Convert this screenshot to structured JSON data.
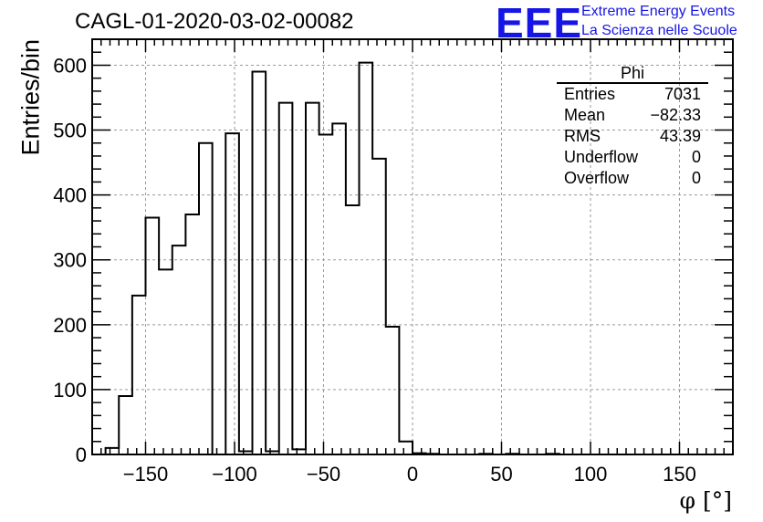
{
  "title": "CAGL-01-2020-03-02-00082",
  "logo": {
    "mark": "EEE",
    "line1": "Extreme Energy Events",
    "line2": "La Scienza nelle Scuole",
    "color": "#1515e6"
  },
  "stats": {
    "title": "Phi",
    "rows": [
      {
        "label": "Entries",
        "value": "7031"
      },
      {
        "label": "Mean",
        "value": "−82.33"
      },
      {
        "label": "RMS",
        "value": "43.39"
      },
      {
        "label": "Underflow",
        "value": "0"
      },
      {
        "label": "Overflow",
        "value": "0"
      }
    ]
  },
  "chart_data": {
    "type": "bar",
    "title": "CAGL-01-2020-03-02-00082",
    "xlabel": "φ [°]",
    "ylabel": "Entries/bin",
    "xlim": [
      -180,
      180
    ],
    "ylim": [
      0,
      640
    ],
    "bin_width": 7.5,
    "xticks": [
      -150,
      -100,
      -50,
      0,
      50,
      100,
      150
    ],
    "xtick_labels": [
      "−150",
      "−100",
      "−50",
      "0",
      "50",
      "100",
      "150"
    ],
    "yticks": [
      0,
      100,
      200,
      300,
      400,
      500,
      600
    ],
    "ytick_labels": [
      "0",
      "100",
      "200",
      "300",
      "400",
      "500",
      "600"
    ],
    "grid": true,
    "legend": "top-right stats box",
    "bin_edges_start": -172.5,
    "values": [
      10,
      90,
      245,
      365,
      285,
      322,
      370,
      480,
      0,
      495,
      5,
      590,
      5,
      542,
      8,
      542,
      493,
      510,
      384,
      604,
      456,
      197,
      20,
      2,
      1,
      0,
      0,
      0,
      1,
      0,
      1,
      0,
      0,
      1,
      0,
      0,
      0,
      0,
      0,
      0,
      0,
      0,
      0,
      0,
      0,
      0
    ],
    "line_color": "#000000"
  }
}
